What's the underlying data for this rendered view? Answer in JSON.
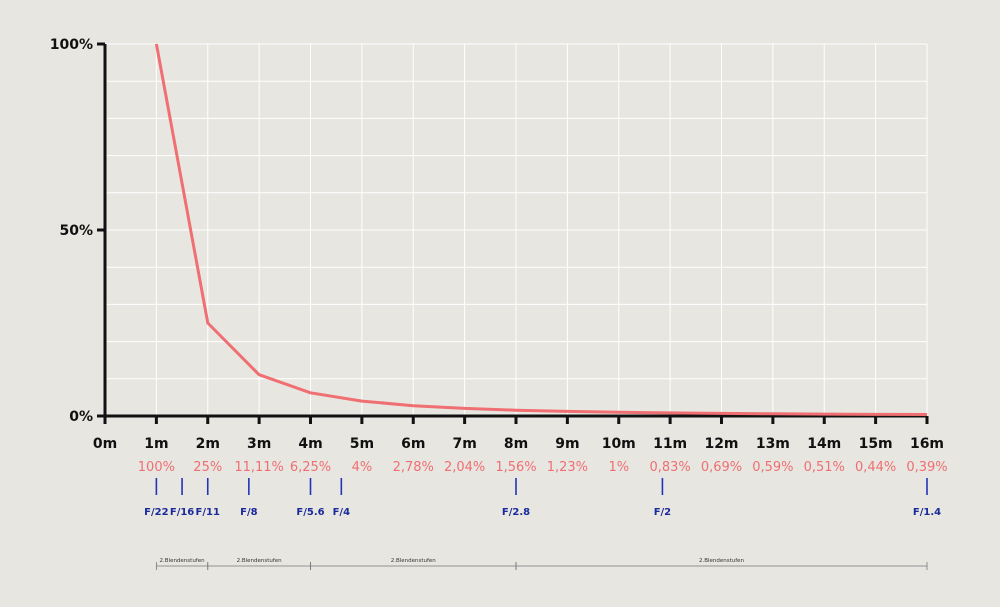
{
  "chart_data": {
    "type": "line",
    "x_unit": "m",
    "y_unit": "%",
    "x": [
      1,
      2,
      3,
      4,
      5,
      6,
      7,
      8,
      9,
      10,
      11,
      12,
      13,
      14,
      15,
      16
    ],
    "y": [
      100,
      25,
      11.11,
      6.25,
      4,
      2.78,
      2.04,
      1.56,
      1.23,
      1,
      0.83,
      0.69,
      0.59,
      0.51,
      0.44,
      0.39
    ],
    "xlim": [
      0,
      16
    ],
    "ylim": [
      0,
      100
    ],
    "grid": true,
    "x_ticks": [
      "0m",
      "1m",
      "2m",
      "3m",
      "4m",
      "5m",
      "6m",
      "7m",
      "8m",
      "9m",
      "10m",
      "11m",
      "12m",
      "13m",
      "14m",
      "15m",
      "16m"
    ],
    "y_ticks": [
      {
        "value": 0,
        "label": "0%"
      },
      {
        "value": 50,
        "label": "50%"
      },
      {
        "value": 100,
        "label": "100%"
      }
    ],
    "value_labels": [
      "100%",
      "25%",
      "11,11%",
      "6,25%",
      "4%",
      "2,78%",
      "2,04%",
      "1,56%",
      "1,23%",
      "1%",
      "0,83%",
      "0,69%",
      "0,59%",
      "0,51%",
      "0,44%",
      "0,39%"
    ],
    "fstops": [
      {
        "x": 1,
        "label": "F/22"
      },
      {
        "x": 1.5,
        "label": "F/16"
      },
      {
        "x": 2,
        "label": "F/11"
      },
      {
        "x": 2.8,
        "label": "F/8"
      },
      {
        "x": 4,
        "label": "F/5.6"
      },
      {
        "x": 4.6,
        "label": "F/4"
      },
      {
        "x": 8,
        "label": "F/2.8"
      },
      {
        "x": 10.85,
        "label": "F/2"
      },
      {
        "x": 16,
        "label": "F/1.4"
      }
    ],
    "brackets": [
      {
        "from": 1,
        "to": 2,
        "label": "2.Blendenstufen"
      },
      {
        "from": 2,
        "to": 4,
        "label": "2.Blendenstufen"
      },
      {
        "from": 4,
        "to": 8,
        "label": "2.Blendenstufen"
      },
      {
        "from": 8,
        "to": 16,
        "label": "2.Blendenstufen"
      }
    ],
    "colors": {
      "line": "#ef6f72",
      "value_labels": "#ef6f72",
      "fstops": "#1a2a9a",
      "axis": "#111111",
      "grid": "#ffffff",
      "background": "#e8e6e1"
    }
  }
}
